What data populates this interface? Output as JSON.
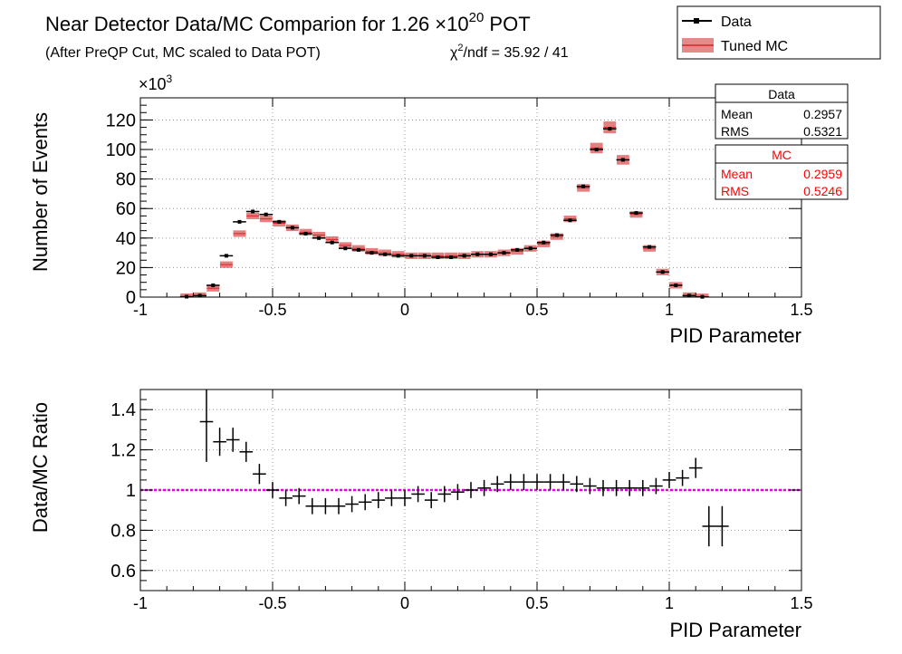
{
  "header": {
    "title_main": "Near Detector Data/MC Comparion for 1.26",
    "title_times": "×10",
    "title_exp": "20",
    "title_tail": " POT",
    "subtitle": "(After PreQP Cut, MC scaled to Data POT)",
    "chi_symbol": "χ",
    "chi_exp": "2",
    "chi_tail": "/ndf = 35.92 / 41"
  },
  "legend": {
    "data_label": "Data",
    "mc_label": "Tuned MC"
  },
  "stats": {
    "data": {
      "title": "Data",
      "mean_label": "Mean",
      "mean_value": "0.2957",
      "rms_label": "RMS",
      "rms_value": "0.5321"
    },
    "mc": {
      "title": "MC",
      "mean_label": "Mean",
      "mean_value": "0.2959",
      "rms_label": "RMS",
      "rms_value": "0.5246"
    }
  },
  "colors": {
    "mc_band": "#d62728",
    "ratio_line": "#e600e6",
    "mc_stats": "#ff0000"
  },
  "chart_data": [
    {
      "type": "scatter",
      "xlabel": "PID Parameter",
      "ylabel": "Number of Events",
      "y_multiplier": "×10",
      "y_multiplier_exp": "3",
      "xlim": [
        -1,
        1.5
      ],
      "ylim": [
        0,
        135
      ],
      "xticks": [
        "-1",
        "-0.5",
        "0",
        "0.5",
        "1",
        "1.5"
      ],
      "yticks": [
        "0",
        "20",
        "40",
        "60",
        "80",
        "100",
        "120"
      ],
      "bin_width": 0.05,
      "x": [
        -0.825,
        -0.775,
        -0.725,
        -0.675,
        -0.625,
        -0.575,
        -0.525,
        -0.475,
        -0.425,
        -0.375,
        -0.325,
        -0.275,
        -0.225,
        -0.175,
        -0.125,
        -0.075,
        -0.025,
        0.025,
        0.075,
        0.125,
        0.175,
        0.225,
        0.275,
        0.325,
        0.375,
        0.425,
        0.475,
        0.525,
        0.575,
        0.625,
        0.675,
        0.725,
        0.775,
        0.825,
        0.875,
        0.925,
        0.975,
        1.025,
        1.075,
        1.125,
        1.175
      ],
      "series": [
        {
          "name": "Data",
          "values": [
            0.3,
            1,
            8,
            28,
            51,
            58,
            56,
            51,
            47,
            43,
            40,
            37,
            33,
            32,
            30,
            29,
            28,
            28,
            28,
            27,
            27,
            28,
            29,
            29,
            30,
            32,
            33,
            37,
            42,
            52,
            75,
            100,
            114,
            93,
            57,
            34,
            17,
            8,
            1,
            0.2,
            0
          ]
        },
        {
          "name": "Tuned MC",
          "values": [
            0.3,
            1,
            6,
            22,
            43,
            55,
            53,
            50,
            47,
            44,
            42,
            39,
            35,
            33,
            31,
            30,
            29,
            28,
            28,
            28,
            28,
            28,
            29,
            29,
            30,
            31,
            33,
            36,
            41,
            53,
            74,
            101,
            115,
            93,
            56,
            33,
            17,
            8,
            1,
            0.2,
            0
          ]
        }
      ]
    },
    {
      "type": "scatter",
      "xlabel": "PID Parameter",
      "ylabel": "Data/MC Ratio",
      "xlim": [
        -1,
        1.5
      ],
      "ylim": [
        0.5,
        1.5
      ],
      "xticks": [
        "-1",
        "-0.5",
        "0",
        "0.5",
        "1",
        "1.5"
      ],
      "yticks": [
        "0.6",
        "0.8",
        "1",
        "1.2",
        "1.4"
      ],
      "reference_line": 1,
      "x": [
        -0.75,
        -0.7,
        -0.65,
        -0.6,
        -0.55,
        -0.5,
        -0.45,
        -0.4,
        -0.35,
        -0.3,
        -0.25,
        -0.2,
        -0.15,
        -0.1,
        -0.05,
        0.0,
        0.05,
        0.1,
        0.15,
        0.2,
        0.25,
        0.3,
        0.35,
        0.4,
        0.45,
        0.5,
        0.55,
        0.6,
        0.65,
        0.7,
        0.75,
        0.8,
        0.85,
        0.9,
        0.95,
        1.0,
        1.05,
        1.1,
        1.15,
        1.2
      ],
      "values": [
        1.34,
        1.24,
        1.25,
        1.19,
        1.08,
        1.0,
        0.96,
        0.97,
        0.92,
        0.92,
        0.92,
        0.93,
        0.94,
        0.95,
        0.96,
        0.96,
        0.98,
        0.95,
        0.98,
        0.99,
        1.0,
        1.01,
        1.03,
        1.04,
        1.04,
        1.04,
        1.04,
        1.04,
        1.03,
        1.02,
        1.01,
        1.01,
        1.01,
        1.01,
        1.02,
        1.05,
        1.06,
        1.11,
        0.82,
        0.82
      ],
      "errors": [
        0.2,
        0.07,
        0.06,
        0.05,
        0.05,
        0.04,
        0.04,
        0.04,
        0.04,
        0.04,
        0.04,
        0.04,
        0.04,
        0.04,
        0.04,
        0.04,
        0.04,
        0.04,
        0.04,
        0.04,
        0.04,
        0.04,
        0.04,
        0.04,
        0.04,
        0.04,
        0.04,
        0.04,
        0.04,
        0.04,
        0.04,
        0.04,
        0.04,
        0.04,
        0.04,
        0.04,
        0.04,
        0.05,
        0.1,
        0.1
      ]
    }
  ]
}
